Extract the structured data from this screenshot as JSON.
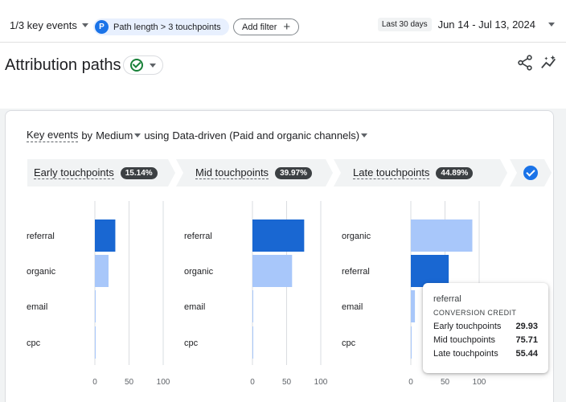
{
  "topbar": {
    "key_events": "1/3 key events",
    "filter_badge": "P",
    "filter_label": "Path length > 3 touchpoints",
    "add_filter": "Add filter",
    "date_label": "Last 30 days",
    "date_value": "Jun 14 - Jul 13, 2024"
  },
  "header": {
    "title": "Attribution paths"
  },
  "card": {
    "subtitle_metric": "Key events",
    "subtitle_by": "by",
    "subtitle_dimension": "Medium",
    "subtitle_using": "using",
    "subtitle_model": "Data-driven (Paid and organic channels)"
  },
  "stages": [
    {
      "label": "Early touchpoints",
      "pct": "15.14%"
    },
    {
      "label": "Mid touchpoints",
      "pct": "39.97%"
    },
    {
      "label": "Late touchpoints",
      "pct": "44.89%"
    }
  ],
  "chart_data": [
    {
      "type": "bar",
      "orientation": "horizontal",
      "categories": [
        "referral",
        "organic",
        "email",
        "cpc"
      ],
      "values": [
        29.93,
        20,
        0.5,
        0.5
      ],
      "xlim": [
        0,
        100
      ],
      "xticks": [
        "0",
        "50",
        "100"
      ],
      "highlight": "referral"
    },
    {
      "type": "bar",
      "orientation": "horizontal",
      "categories": [
        "referral",
        "organic",
        "email",
        "cpc"
      ],
      "values": [
        75.71,
        58,
        0.5,
        0.5
      ],
      "xlim": [
        0,
        100
      ],
      "xticks": [
        "0",
        "50",
        "100"
      ],
      "highlight": "referral"
    },
    {
      "type": "bar",
      "orientation": "horizontal",
      "categories": [
        "organic",
        "referral",
        "email",
        "cpc"
      ],
      "values": [
        90,
        55.44,
        6,
        0.5
      ],
      "xlim": [
        0,
        100
      ],
      "xticks": [
        "0",
        "50",
        "100"
      ],
      "highlight": "referral"
    }
  ],
  "colors": {
    "highlight": "#1967d2",
    "normal": "#a8c7fa",
    "grid": "#dadce0"
  },
  "tooltip": {
    "title": "referral",
    "heading": "CONVERSION CREDIT",
    "rows": [
      {
        "label": "Early touchpoints",
        "value": "29.93"
      },
      {
        "label": "Mid touchpoints",
        "value": "75.71"
      },
      {
        "label": "Late touchpoints",
        "value": "55.44"
      }
    ]
  }
}
